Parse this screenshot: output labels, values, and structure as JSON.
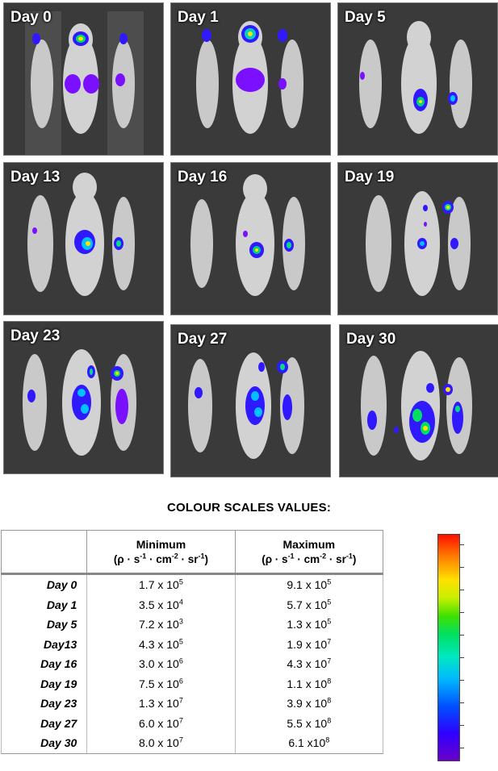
{
  "panels": [
    {
      "label": "Day 0"
    },
    {
      "label": "Day 1"
    },
    {
      "label": "Day 5"
    },
    {
      "label": "Day 13"
    },
    {
      "label": "Day 16"
    },
    {
      "label": "Day 19"
    },
    {
      "label": "Day 23"
    },
    {
      "label": "Day 27"
    },
    {
      "label": "Day 30"
    }
  ],
  "scale_heading": "COLOUR SCALES VALUES:",
  "table": {
    "col_min": "Minimum",
    "col_max": "Maximum",
    "unit": {
      "rho": "(ρ · s",
      "e1": "-1",
      "cm": " · cm",
      "e2": "-2",
      "sr": " · sr",
      "e3": "-1",
      "close": ")"
    },
    "rows": [
      {
        "day": "Day 0",
        "min_m": "1.7 x 10",
        "min_e": "5",
        "max_m": "9.1 x 10",
        "max_e": "5"
      },
      {
        "day": "Day 1",
        "min_m": "3.5 x 10",
        "min_e": "4",
        "max_m": "5.7 x 10",
        "max_e": "5"
      },
      {
        "day": "Day 5",
        "min_m": "7.2 x 10",
        "min_e": "3",
        "max_m": "1.3 x 10",
        "max_e": "5"
      },
      {
        "day": "Day13",
        "min_m": "4.3 x 10",
        "min_e": "5",
        "max_m": "1.9 x 10",
        "max_e": "7"
      },
      {
        "day": "Day 16",
        "min_m": "3.0 x 10",
        "min_e": "6",
        "max_m": "4.3 x 10",
        "max_e": "7"
      },
      {
        "day": "Day 19",
        "min_m": "7.5 x 10",
        "min_e": "6",
        "max_m": "1.1 x 10",
        "max_e": "8"
      },
      {
        "day": "Day 23",
        "min_m": "1.3 x 10",
        "min_e": "7",
        "max_m": "3.9 x 10",
        "max_e": "8"
      },
      {
        "day": "Day 27",
        "min_m": "6.0 x 10",
        "min_e": "7",
        "max_m": "5.5 x 10",
        "max_e": "8"
      },
      {
        "day": "Day 30",
        "min_m": "8.0 x 10",
        "min_e": "7",
        "max_m": "6.1 x10",
        "max_e": "8"
      }
    ]
  }
}
